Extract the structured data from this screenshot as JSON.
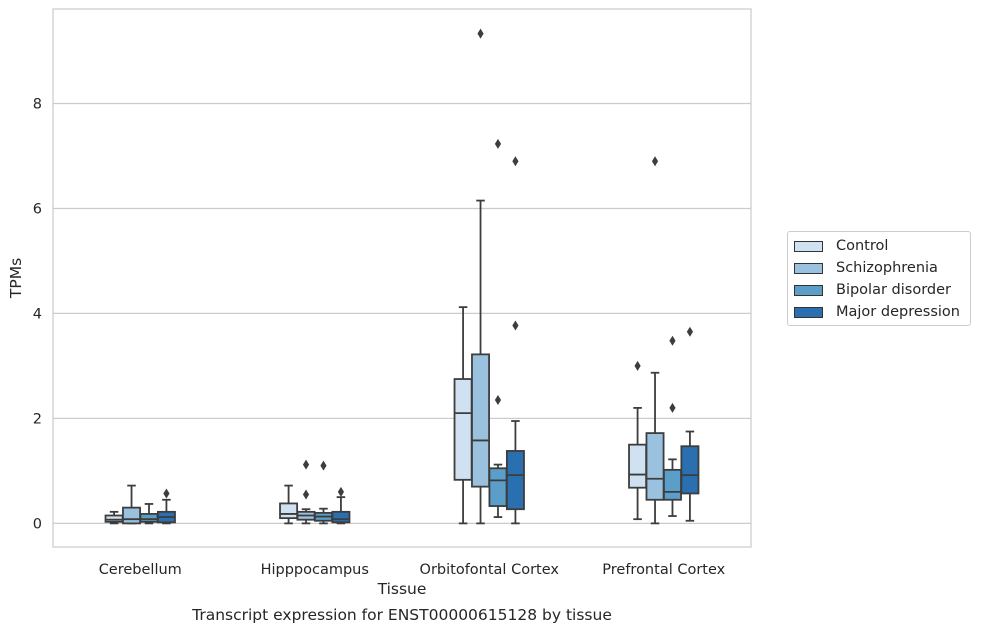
{
  "chart_data": {
    "type": "boxplot",
    "xlabel": "Tissue",
    "ylabel": "TPMs",
    "caption": "Transcript expression for ENST00000615128 by tissue",
    "ylim": [
      -0.45,
      9.8
    ],
    "yticks": [
      0,
      2,
      4,
      6,
      8
    ],
    "grid": true,
    "legend_position": "right",
    "categories": [
      "Cerebellum",
      "Hipppocampus",
      "Orbitofontal Cortex",
      "Prefrontal Cortex"
    ],
    "series": [
      {
        "name": "Control",
        "color": "#d0e1f1",
        "boxes": [
          {
            "whislo": 0.0,
            "q1": 0.03,
            "med": 0.07,
            "q3": 0.15,
            "whishi": 0.22,
            "fliers": []
          },
          {
            "whislo": 0.0,
            "q1": 0.1,
            "med": 0.18,
            "q3": 0.38,
            "whishi": 0.72,
            "fliers": []
          },
          {
            "whislo": 0.0,
            "q1": 0.83,
            "med": 2.1,
            "q3": 2.75,
            "whishi": 4.12,
            "fliers": []
          },
          {
            "whislo": 0.08,
            "q1": 0.68,
            "med": 0.93,
            "q3": 1.5,
            "whishi": 2.2,
            "fliers": [
              3.0
            ]
          }
        ]
      },
      {
        "name": "Schizophrenia",
        "color": "#9ac2de",
        "boxes": [
          {
            "whislo": 0.0,
            "q1": 0.0,
            "med": 0.08,
            "q3": 0.3,
            "whishi": 0.72,
            "fliers": []
          },
          {
            "whislo": 0.0,
            "q1": 0.07,
            "med": 0.15,
            "q3": 0.22,
            "whishi": 0.27,
            "fliers": [
              0.55,
              1.12
            ]
          },
          {
            "whislo": 0.0,
            "q1": 0.7,
            "med": 1.58,
            "q3": 3.22,
            "whishi": 6.15,
            "fliers": [
              9.33
            ]
          },
          {
            "whislo": 0.0,
            "q1": 0.45,
            "med": 0.85,
            "q3": 1.72,
            "whishi": 2.87,
            "fliers": [
              6.9
            ]
          }
        ]
      },
      {
        "name": "Bipolar disorder",
        "color": "#5a9ec9",
        "boxes": [
          {
            "whislo": 0.0,
            "q1": 0.03,
            "med": 0.08,
            "q3": 0.18,
            "whishi": 0.37,
            "fliers": []
          },
          {
            "whislo": 0.0,
            "q1": 0.05,
            "med": 0.13,
            "q3": 0.2,
            "whishi": 0.28,
            "fliers": [
              1.1
            ]
          },
          {
            "whislo": 0.12,
            "q1": 0.33,
            "med": 0.82,
            "q3": 1.05,
            "whishi": 1.12,
            "fliers": [
              2.35,
              7.23
            ]
          },
          {
            "whislo": 0.14,
            "q1": 0.45,
            "med": 0.6,
            "q3": 1.02,
            "whishi": 1.22,
            "fliers": [
              2.2,
              3.48
            ]
          }
        ]
      },
      {
        "name": "Major depression",
        "color": "#2a6fb0",
        "boxes": [
          {
            "whislo": 0.0,
            "q1": 0.02,
            "med": 0.12,
            "q3": 0.22,
            "whishi": 0.45,
            "fliers": [
              0.57
            ]
          },
          {
            "whislo": 0.0,
            "q1": 0.02,
            "med": 0.08,
            "q3": 0.22,
            "whishi": 0.5,
            "fliers": [
              0.6
            ]
          },
          {
            "whislo": 0.0,
            "q1": 0.27,
            "med": 0.92,
            "q3": 1.38,
            "whishi": 1.95,
            "fliers": [
              3.77,
              6.9
            ]
          },
          {
            "whislo": 0.05,
            "q1": 0.57,
            "med": 0.92,
            "q3": 1.47,
            "whishi": 1.75,
            "fliers": [
              3.65
            ]
          }
        ]
      }
    ]
  }
}
